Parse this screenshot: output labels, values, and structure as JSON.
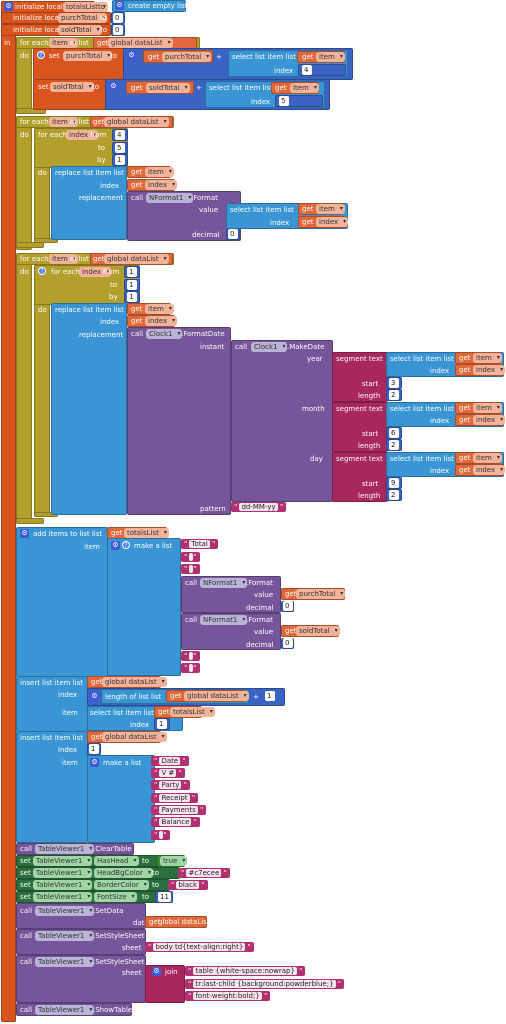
{
  "init": {
    "line1_label": "initialize local",
    "line1_var": "totalsList",
    "line1_to": "to",
    "line1_value": "create empty list",
    "line2_label": "initialize local",
    "line2_var": "purchTotal",
    "line2_to": "to",
    "line2_value": "0",
    "line3_label": "initialize local",
    "line3_var": "soldTotal",
    "line3_to": "to",
    "line3_value": "0",
    "in_label": "in"
  },
  "loop1": {
    "for_each": "for each",
    "item": "item",
    "in_list": "in list",
    "get": "get",
    "list": "global dataList",
    "do": "do",
    "set1": "set",
    "set1_var": "purchTotal",
    "set1_to": "to",
    "get_purch": "get",
    "purch_var": "purchTotal",
    "plus": "+",
    "sel_label": "select list item  list",
    "sel_get": "get",
    "sel_var": "item",
    "index_label": "index",
    "index1": "4",
    "set2": "set",
    "set2_var": "soldTotal",
    "set2_to": "to",
    "get_sold": "get",
    "sold_var": "soldTotal",
    "plus2": "+",
    "sel2_label": "select list item  list",
    "sel2_get": "get",
    "sel2_var": "item",
    "index2_label": "index",
    "index2": "5"
  },
  "loop2": {
    "for_each": "for each",
    "item": "item",
    "in_list": "in list",
    "get": "get",
    "list": "global dataList",
    "do": "do",
    "inner_for": "for each",
    "index_var": "index",
    "from": "from",
    "from_val": "4",
    "to": "to",
    "to_val": "5",
    "by": "by",
    "by_val": "1",
    "do2": "do",
    "replace": "replace list item  list",
    "get_item": "get",
    "item_var": "item",
    "index_label": "index",
    "get_index": "get",
    "index_ref": "index",
    "replacement": "replacement",
    "call": "call",
    "component": "NFormat1",
    "method": ".Format",
    "value_label": "value",
    "sel_label": "select list item  list",
    "sel_get": "get",
    "sel_var": "item",
    "sel_index_label": "index",
    "sel_get_index": "get",
    "sel_index_var": "index",
    "decimal_label": "decimal",
    "decimal_val": "0"
  },
  "loop3": {
    "for_each": "for each",
    "item": "item",
    "in_list": "in list",
    "get": "get",
    "list": "global dataList",
    "do": "do",
    "inner_for": "for each",
    "index_var": "index",
    "from": "from",
    "from_val": "1",
    "to": "to",
    "to_val": "1",
    "by": "by",
    "by_val": "1",
    "do2": "do",
    "replace": "replace list item  list",
    "get_item": "get",
    "item_var": "item",
    "index_label": "index",
    "get_index": "get",
    "index_ref": "index",
    "replacement": "replacement",
    "call": "call",
    "component": "Clock1",
    "method": ".FormatDate",
    "instant": "instant",
    "call2": "call",
    "component2": "Clock1",
    "method2": ".MakeDate",
    "year": "year",
    "month": "month",
    "day": "day",
    "segment": "segment  text",
    "sel_label": "select list item  list",
    "item_v": "item",
    "index_label2": "index",
    "index_v": "index",
    "start": "start",
    "length": "length",
    "year_start": "3",
    "year_len": "2",
    "month_start": "6",
    "month_len": "2",
    "day_start": "9",
    "day_len": "2",
    "pattern": "pattern",
    "pattern_val": "dd-MM-yy"
  },
  "additems": {
    "label": "add items to list  list",
    "get": "get",
    "list": "totalsList",
    "item_label": "item",
    "make": "make a list",
    "total": "Total",
    "empty": " ",
    "call": "call",
    "nformat": "NFormat1",
    "format": ".Format",
    "value": "value",
    "get_purch": "get",
    "purch": "purchTotal",
    "decimal": "decimal",
    "dec1": "0",
    "get_sold": "get",
    "sold": "soldTotal",
    "dec2": "0"
  },
  "insert1": {
    "label": "insert list item  list",
    "get": "get",
    "list": "global dataList",
    "index_label": "index",
    "length": "length of list  list",
    "len_get": "get",
    "len_list": "global dataList",
    "plus": "+",
    "plus_val": "1",
    "item_label": "item",
    "sel_label": "select list item  list",
    "sel_get": "get",
    "sel_list": "totalsList",
    "sel_index_label": "index",
    "sel_index": "1"
  },
  "insert2": {
    "label": "insert list item  list",
    "get": "get",
    "list": "global dataList",
    "index_label": "index",
    "index_val": "1",
    "item_label": "item",
    "make": "make a list",
    "items": [
      "Date",
      "V #",
      "Party",
      "Receipt",
      "Payments",
      "Balance",
      " "
    ]
  },
  "table": {
    "call": "call",
    "comp": "TableViewer1",
    "clear": ".ClearTable",
    "set": "set",
    "to": "to",
    "hashead": "HasHead",
    "true_val": "true",
    "headbg": "HeadBgColor",
    "headbg_val": "#c7ecee",
    "border": "BorderColor",
    "border_val": "black",
    "fontsize": "FontSize",
    "fontsize_val": "11",
    "setdata": ".SetData",
    "data": "data",
    "get": "get",
    "datalist": "global dataList",
    "setstyle": ".SetStyleSheet",
    "sheet": "sheet",
    "sheet1": "body td{text-align:right}",
    "join": "join",
    "j1": "table {white-space:nowrap}",
    "j2": "tr:last-child {background:powderblue;}",
    "j3": "font-weight:bold;}",
    "showtable": ".ShowTable"
  },
  "colors": {
    "variables": "#d8551f",
    "lists": "#3a95d5",
    "components": "#76559a",
    "control": "#b3a02c",
    "text": "#a8285e",
    "math": "#3b63c4"
  }
}
